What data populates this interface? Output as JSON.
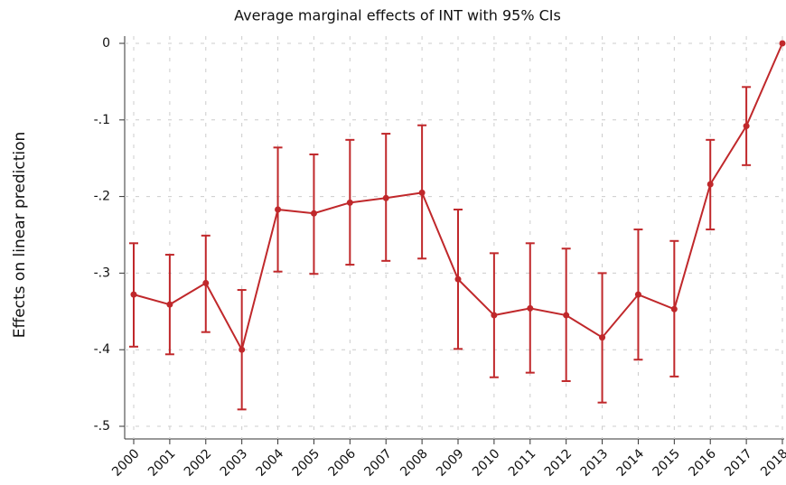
{
  "chart_data": {
    "type": "line",
    "title": "Average marginal effects of INT with 95% CIs",
    "y_label": "Effects on linear prediction",
    "categories": [
      "2000",
      "2001",
      "2002",
      "2003",
      "2004",
      "2005",
      "2006",
      "2007",
      "2008",
      "2009",
      "2010",
      "2011",
      "2012",
      "2013",
      "2014",
      "2015",
      "2016",
      "2017",
      "2018"
    ],
    "series": [
      {
        "color": "#c0282b",
        "values": [
          -0.328,
          -0.341,
          -0.313,
          -0.4,
          -0.217,
          -0.222,
          -0.208,
          -0.202,
          -0.195,
          -0.308,
          -0.355,
          -0.346,
          -0.355,
          -0.384,
          -0.328,
          -0.347,
          -0.184,
          -0.108,
          0
        ],
        "ci_lower": [
          -0.396,
          -0.406,
          -0.377,
          -0.478,
          -0.298,
          -0.301,
          -0.289,
          -0.284,
          -0.281,
          -0.399,
          -0.436,
          -0.43,
          -0.441,
          -0.469,
          -0.413,
          -0.435,
          -0.243,
          -0.159,
          null
        ],
        "ci_upper": [
          -0.261,
          -0.276,
          -0.251,
          -0.322,
          -0.136,
          -0.145,
          -0.126,
          -0.118,
          -0.107,
          -0.217,
          -0.274,
          -0.261,
          -0.268,
          -0.3,
          -0.243,
          -0.258,
          -0.126,
          -0.057,
          null
        ]
      }
    ],
    "ylim": [
      -0.5,
      0
    ],
    "yticks": [
      0,
      {
        "value": -0.1,
        "label": "-.1"
      },
      {
        "value": -0.2,
        "label": "-.2"
      },
      {
        "value": -0.3,
        "label": "-.3"
      },
      {
        "value": -0.4,
        "label": "-.4"
      },
      {
        "value": -0.5,
        "label": "-.5"
      }
    ],
    "grid": true
  }
}
